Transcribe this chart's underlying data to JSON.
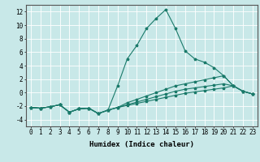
{
  "background_color": "#c8e8e8",
  "grid_color": "#ffffff",
  "line_color": "#1a7a6a",
  "marker": "*",
  "xlabel": "Humidex (Indice chaleur)",
  "xlim": [
    -0.5,
    23.5
  ],
  "ylim": [
    -5.0,
    13.0
  ],
  "yticks": [
    -4,
    -2,
    0,
    2,
    4,
    6,
    8,
    10,
    12
  ],
  "xticks": [
    0,
    1,
    2,
    3,
    4,
    5,
    6,
    7,
    8,
    9,
    10,
    11,
    12,
    13,
    14,
    15,
    16,
    17,
    18,
    19,
    20,
    21,
    22,
    23
  ],
  "series": [
    {
      "x": [
        0,
        1,
        2,
        3,
        4,
        5,
        6,
        7,
        8,
        9,
        10,
        11,
        12,
        13,
        14,
        15,
        16,
        17,
        18,
        19,
        20,
        21,
        22,
        23
      ],
      "y": [
        -2.2,
        -2.3,
        -2.1,
        -1.8,
        -2.9,
        -2.4,
        -2.3,
        -3.1,
        -2.6,
        1.0,
        5.0,
        7.0,
        9.5,
        11.0,
        12.3,
        9.5,
        6.2,
        5.0,
        4.5,
        3.7,
        2.5,
        1.0,
        0.2,
        -0.2
      ]
    },
    {
      "x": [
        0,
        1,
        2,
        3,
        4,
        5,
        6,
        7,
        8,
        9,
        10,
        11,
        12,
        13,
        14,
        15,
        16,
        17,
        18,
        19,
        20,
        21,
        22,
        23
      ],
      "y": [
        -2.2,
        -2.3,
        -2.1,
        -1.8,
        -2.9,
        -2.4,
        -2.3,
        -3.1,
        -2.6,
        -2.2,
        -1.5,
        -1.0,
        -0.5,
        0.0,
        0.5,
        1.0,
        1.3,
        1.6,
        1.9,
        2.2,
        2.5,
        1.0,
        0.2,
        -0.2
      ]
    },
    {
      "x": [
        0,
        1,
        2,
        3,
        4,
        5,
        6,
        7,
        8,
        9,
        10,
        11,
        12,
        13,
        14,
        15,
        16,
        17,
        18,
        19,
        20,
        21,
        22,
        23
      ],
      "y": [
        -2.2,
        -2.3,
        -2.1,
        -1.8,
        -2.9,
        -2.4,
        -2.3,
        -3.1,
        -2.6,
        -2.2,
        -1.8,
        -1.4,
        -1.0,
        -0.6,
        -0.2,
        0.2,
        0.5,
        0.7,
        0.9,
        1.1,
        1.3,
        1.0,
        0.2,
        -0.2
      ]
    },
    {
      "x": [
        0,
        1,
        2,
        3,
        4,
        5,
        6,
        7,
        8,
        9,
        10,
        11,
        12,
        13,
        14,
        15,
        16,
        17,
        18,
        19,
        20,
        21,
        22,
        23
      ],
      "y": [
        -2.2,
        -2.3,
        -2.1,
        -1.8,
        -2.9,
        -2.4,
        -2.3,
        -3.1,
        -2.6,
        -2.2,
        -1.9,
        -1.6,
        -1.3,
        -1.0,
        -0.7,
        -0.4,
        -0.1,
        0.1,
        0.3,
        0.5,
        0.7,
        1.0,
        0.2,
        -0.2
      ]
    }
  ],
  "tick_fontsize": 5.5,
  "xlabel_fontsize": 6.5,
  "linewidth": 0.8,
  "markersize": 2.5
}
